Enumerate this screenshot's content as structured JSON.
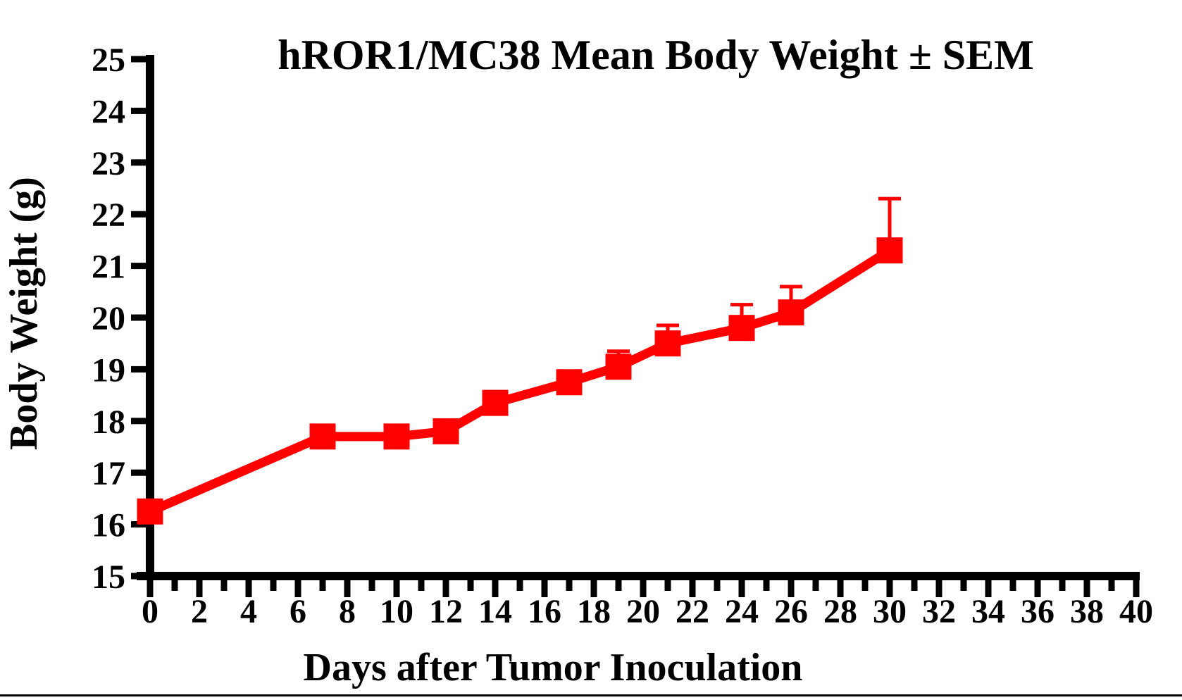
{
  "page": {
    "background_color": "#ffffff",
    "bottom_rule_color": "#000000"
  },
  "chart_data": {
    "type": "line",
    "title": "hROR1/MC38 Mean Body Weight ± SEM",
    "xlabel": "Days after Tumor Inoculation",
    "ylabel": "Body Weight (g)",
    "xlim": [
      0,
      40
    ],
    "ylim": [
      15,
      25
    ],
    "grid": false,
    "legend": "none",
    "marker": "filled-square",
    "marker_color": "#ff0000",
    "line_color": "#ff0000",
    "axis_color": "#000000",
    "error_bars": "SEM, upper side only, with caps",
    "x": [
      0,
      7,
      10,
      12,
      14,
      17,
      19,
      21,
      24,
      26,
      30
    ],
    "series": [
      {
        "name": "hROR1/MC38 Mean Body Weight",
        "color": "#ff0000",
        "values": [
          16.25,
          17.7,
          17.7,
          17.8,
          18.35,
          18.75,
          19.05,
          19.5,
          19.8,
          20.1,
          21.3
        ],
        "sem_upper": [
          0,
          0,
          0,
          0,
          0,
          0,
          0.3,
          0.35,
          0.45,
          0.5,
          1.0
        ]
      }
    ],
    "x_major_tick_step": 2,
    "x_minor_tick_step": 1,
    "x_tick_labels": [
      "0",
      "2",
      "4",
      "6",
      "8",
      "10",
      "12",
      "14",
      "16",
      "18",
      "20",
      "22",
      "24",
      "26",
      "28",
      "30",
      "32",
      "34",
      "36",
      "38",
      "40"
    ],
    "y_tick_labels": [
      "15",
      "16",
      "17",
      "18",
      "19",
      "20",
      "21",
      "22",
      "23",
      "24",
      "25"
    ]
  }
}
